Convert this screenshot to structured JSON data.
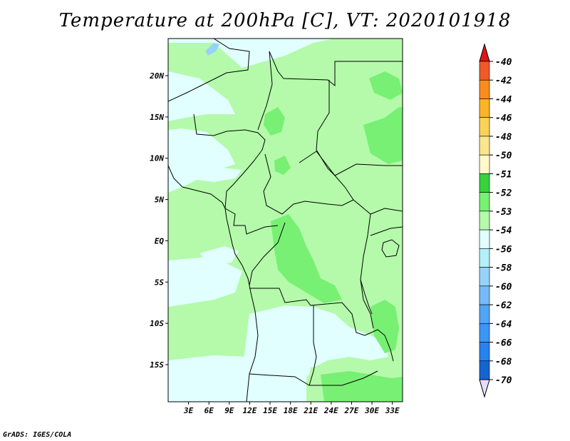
{
  "title": "Temperature at 200hPa [C], VT: 2020101918",
  "credit": "GrADS: IGES/COLA",
  "map": {
    "lon_range": [
      0,
      34.5
    ],
    "lat_range": [
      -19.5,
      24.5
    ],
    "lat_ticks": [
      {
        "value": 20,
        "label": "20N"
      },
      {
        "value": 15,
        "label": "15N"
      },
      {
        "value": 10,
        "label": "10N"
      },
      {
        "value": 5,
        "label": "5N"
      },
      {
        "value": 0,
        "label": "EQ"
      },
      {
        "value": -5,
        "label": "5S"
      },
      {
        "value": -10,
        "label": "10S"
      },
      {
        "value": -15,
        "label": "15S"
      }
    ],
    "lon_ticks": [
      {
        "value": 3,
        "label": "3E"
      },
      {
        "value": 6,
        "label": "6E"
      },
      {
        "value": 9,
        "label": "9E"
      },
      {
        "value": 12,
        "label": "12E"
      },
      {
        "value": 15,
        "label": "15E"
      },
      {
        "value": 18,
        "label": "18E"
      },
      {
        "value": 21,
        "label": "21E"
      },
      {
        "value": 24,
        "label": "24E"
      },
      {
        "value": 27,
        "label": "27E"
      },
      {
        "value": 30,
        "label": "30E"
      },
      {
        "value": 33,
        "label": "33E"
      }
    ],
    "colors": {
      "c54": "#e1ffff",
      "c53": "#b4faaa",
      "c52": "#78f073",
      "c51": "#37d23c",
      "lake": "#96d2fa",
      "border": "#000000"
    }
  },
  "colorbar": {
    "levels": [
      {
        "label": "-40",
        "color": "#fa3c3c"
      },
      {
        "label": "-42",
        "color": "#f05a28"
      },
      {
        "label": "-44",
        "color": "#fa8c1e"
      },
      {
        "label": "-46",
        "color": "#fab428"
      },
      {
        "label": "-48",
        "color": "#fad25a"
      },
      {
        "label": "-50",
        "color": "#fae68c"
      },
      {
        "label": "-51",
        "color": "#fffac8"
      },
      {
        "label": "-52",
        "color": "#37d23c"
      },
      {
        "label": "-53",
        "color": "#78f073"
      },
      {
        "label": "-54",
        "color": "#b4faaa"
      },
      {
        "label": "-56",
        "color": "#e1ffff"
      },
      {
        "label": "-58",
        "color": "#b4f0fa"
      },
      {
        "label": "-60",
        "color": "#96d2fa"
      },
      {
        "label": "-62",
        "color": "#78b9fa"
      },
      {
        "label": "-64",
        "color": "#50a5f5"
      },
      {
        "label": "-66",
        "color": "#3c96f5"
      },
      {
        "label": "-68",
        "color": "#2882f0"
      },
      {
        "label": "-70",
        "color": "#1464d2"
      }
    ],
    "extra_colors": [
      "#0f55c8",
      "#0a46b4",
      "#000a78"
    ],
    "top_arrow_color": "#e11414",
    "bottom_arrow_color": "#e6dcfa"
  }
}
